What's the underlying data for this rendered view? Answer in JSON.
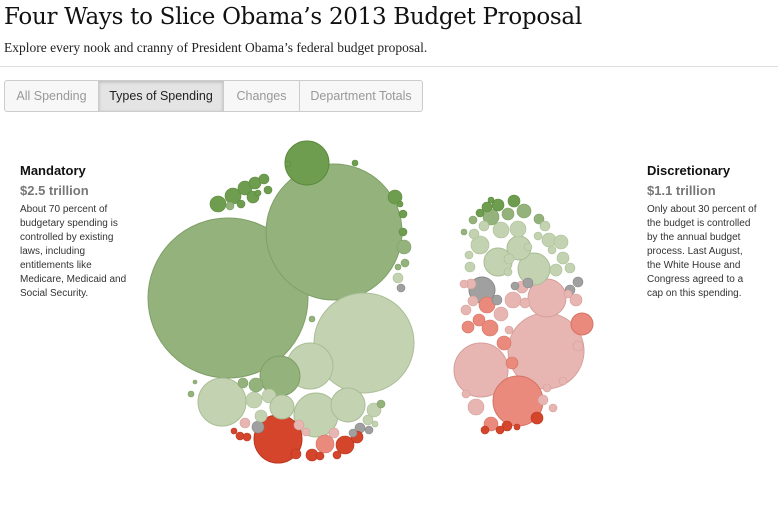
{
  "header": {
    "title": "Four Ways to Slice Obama’s 2013 Budget Proposal",
    "subtitle": "Explore every nook and cranny of President Obama’s federal budget proposal."
  },
  "tabs": [
    {
      "label": "All Spending",
      "active": false
    },
    {
      "label": "Types of Spending",
      "active": true
    },
    {
      "label": "Changes",
      "active": false
    },
    {
      "label": "Department Totals",
      "active": false
    }
  ],
  "mandatory": {
    "heading": "Mandatory",
    "amount": "$2.5 trillion",
    "description": "About 70 percent of budgetary spending is controlled by existing laws, including entitlements like Medicare, Medicaid and Social Security."
  },
  "discretionary": {
    "heading": "Discretionary",
    "amount": "$1.1 trillion",
    "description": "Only about 30 percent of the budget is controlled by the annual budget process. Last August, the White House and Congress agreed to a cap on this spending."
  },
  "colors": {
    "strong_increase": "#6e9d4f",
    "increase": "#94b37c",
    "slight_increase": "#c3d3b1",
    "no_change": "#a0a0a0",
    "slight_decrease": "#e8b6b2",
    "decrease": "#ea8a7c",
    "strong_decrease": "#d5452b"
  },
  "chart_data": {
    "type": "bubble",
    "groups": [
      "Mandatory",
      "Discretionary"
    ],
    "totals": [
      "$2.5 trillion",
      "$1.1 trillion"
    ]
  }
}
